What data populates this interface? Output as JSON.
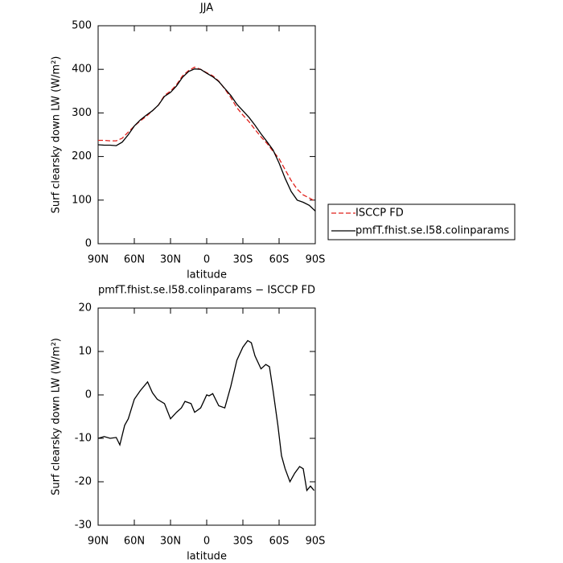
{
  "chart_data": [
    {
      "type": "line",
      "title": "JJA",
      "xlabel": "latitude",
      "ylabel": "Surf clearsky down LW (W/m²)",
      "x": [
        90,
        85,
        80,
        75,
        70,
        65,
        60,
        55,
        50,
        45,
        40,
        35,
        30,
        25,
        20,
        15,
        10,
        5,
        0,
        -5,
        -10,
        -15,
        -20,
        -25,
        -30,
        -35,
        -40,
        -45,
        -50,
        -55,
        -60,
        -65,
        -70,
        -75,
        -80,
        -85,
        -90
      ],
      "series": [
        {
          "name": "ISCCP FD",
          "color": "#e0201b",
          "dash": true,
          "values": [
            237,
            237,
            236,
            236,
            242,
            256,
            270,
            282,
            292,
            305,
            318,
            340,
            350,
            365,
            385,
            397,
            405,
            400,
            392,
            385,
            373,
            355,
            335,
            312,
            295,
            280,
            262,
            245,
            230,
            212,
            195,
            170,
            145,
            125,
            112,
            105,
            97
          ]
        },
        {
          "name": "pmfT.fhist.se.l58.colinparams",
          "color": "#000000",
          "dash": false,
          "values": [
            227,
            226,
            226,
            225,
            233,
            250,
            270,
            284,
            295,
            305,
            318,
            338,
            347,
            362,
            382,
            395,
            401,
            400,
            391,
            383,
            372,
            356,
            340,
            320,
            305,
            290,
            272,
            252,
            234,
            215,
            185,
            150,
            120,
            100,
            95,
            88,
            75
          ]
        }
      ],
      "xlim": [
        90,
        -90
      ],
      "xticks": [
        {
          "value": 90,
          "label": "90N"
        },
        {
          "value": 60,
          "label": "60N"
        },
        {
          "value": 30,
          "label": "30N"
        },
        0,
        {
          "value": -30,
          "label": "30S"
        },
        {
          "value": -60,
          "label": "60S"
        },
        {
          "value": -90,
          "label": "90S"
        }
      ],
      "ylim": [
        0,
        500
      ],
      "yticks": [
        0,
        100,
        200,
        300,
        400,
        500
      ],
      "legend": "right"
    },
    {
      "type": "line",
      "title": "pmfT.fhist.se.l58.colinparams − ISCCP FD",
      "xlabel": "latitude",
      "ylabel": "Surf clearsky down LW (W/m²)",
      "x": [
        90,
        85,
        80,
        75,
        72,
        68,
        65,
        60,
        55,
        49,
        45,
        41,
        35,
        30,
        25,
        21,
        18,
        13,
        10,
        5,
        0,
        -2,
        -5,
        -10,
        -15,
        -20,
        -25,
        -30,
        -34,
        -37,
        -40,
        -45,
        -49,
        -52,
        -55,
        -59,
        -62,
        -65,
        -69,
        -73,
        -77,
        -80,
        -83,
        -86,
        -89
      ],
      "values": [
        -10,
        -9.6,
        -10,
        -9.8,
        -11.5,
        -7,
        -5.5,
        -1,
        1,
        3,
        0.5,
        -1,
        -2,
        -5.5,
        -4,
        -3,
        -1.5,
        -2,
        -4,
        -3,
        0,
        -0.2,
        0.3,
        -2.5,
        -3,
        2,
        8,
        11,
        12.5,
        12,
        9,
        6,
        7,
        6.5,
        1,
        -7,
        -14,
        -17,
        -20,
        -18,
        -16.5,
        -17,
        -22,
        -21,
        -22
      ],
      "color": "#000000",
      "xlim": [
        90,
        -90
      ],
      "xticks": [
        {
          "value": 90,
          "label": "90N"
        },
        {
          "value": 60,
          "label": "60N"
        },
        {
          "value": 30,
          "label": "30N"
        },
        0,
        {
          "value": -30,
          "label": "30S"
        },
        {
          "value": -60,
          "label": "60S"
        },
        {
          "value": -90,
          "label": "90S"
        }
      ],
      "ylim": [
        -30,
        20
      ],
      "yticks": [
        -30,
        -20,
        -10,
        0,
        10,
        20
      ]
    }
  ]
}
